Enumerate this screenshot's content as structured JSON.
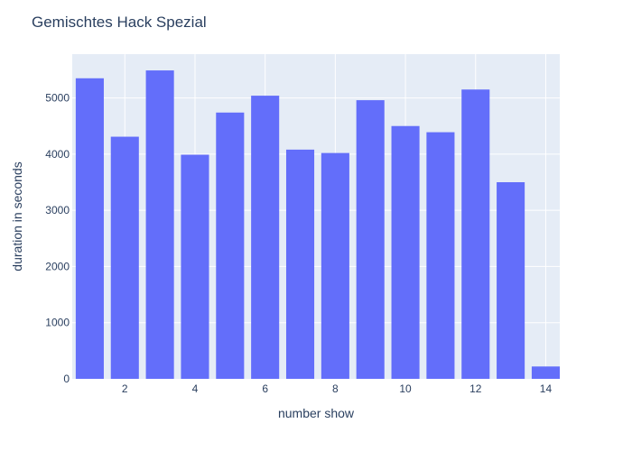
{
  "chart_data": {
    "type": "bar",
    "title": "Gemischtes Hack Spezial",
    "xlabel": "number show",
    "ylabel": "duration in seconds",
    "x": [
      1,
      2,
      3,
      4,
      5,
      6,
      7,
      8,
      9,
      10,
      11,
      12,
      13,
      14
    ],
    "values": [
      5350,
      4310,
      5490,
      3990,
      4740,
      5040,
      4080,
      4020,
      4960,
      4500,
      4390,
      5150,
      3500,
      220
    ],
    "xlim": [
      0.5,
      14.4
    ],
    "ylim": [
      0,
      5780
    ],
    "x_ticks": [
      2,
      4,
      6,
      8,
      10,
      12,
      14
    ],
    "y_ticks": [
      0,
      1000,
      2000,
      3000,
      4000,
      5000
    ],
    "grid": true,
    "colors": {
      "bar": "#636efa",
      "plot_bg": "#e5ecf6",
      "grid": "#ffffff",
      "text": "#2a3f5f"
    }
  }
}
